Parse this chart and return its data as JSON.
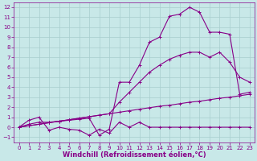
{
  "bg_color": "#c8e8e8",
  "grid_color": "#a8cece",
  "line_color": "#880088",
  "xlim": [
    -0.5,
    23.5
  ],
  "ylim": [
    -1.5,
    12.5
  ],
  "xticks": [
    0,
    1,
    2,
    3,
    4,
    5,
    6,
    7,
    8,
    9,
    10,
    11,
    12,
    13,
    14,
    15,
    16,
    17,
    18,
    19,
    20,
    21,
    22,
    23
  ],
  "yticks": [
    -1,
    0,
    1,
    2,
    3,
    4,
    5,
    6,
    7,
    8,
    9,
    10,
    11,
    12
  ],
  "line_bottom_x": [
    0,
    1,
    2,
    3,
    4,
    5,
    6,
    7,
    8,
    9,
    10,
    11,
    12,
    13,
    14,
    15,
    16,
    17,
    18,
    19,
    20,
    21,
    22,
    23
  ],
  "line_bottom_y": [
    0.0,
    0.15,
    0.3,
    0.45,
    0.6,
    0.75,
    0.9,
    1.05,
    1.2,
    1.35,
    1.5,
    1.65,
    1.8,
    1.95,
    2.1,
    2.2,
    2.35,
    2.5,
    2.6,
    2.75,
    2.9,
    3.0,
    3.15,
    3.3
  ],
  "line_mid_x": [
    0,
    1,
    2,
    3,
    4,
    5,
    6,
    7,
    8,
    9,
    10,
    11,
    12,
    13,
    14,
    15,
    16,
    17,
    18,
    19,
    20,
    21,
    22,
    23
  ],
  "line_mid_y": [
    0.0,
    0.15,
    0.3,
    0.45,
    0.6,
    0.75,
    0.9,
    1.05,
    1.2,
    1.35,
    2.5,
    3.5,
    4.5,
    5.5,
    6.2,
    6.8,
    7.2,
    7.5,
    7.5,
    7.0,
    7.5,
    6.5,
    5.0,
    4.5
  ],
  "line_top_x": [
    0,
    1,
    2,
    3,
    4,
    5,
    6,
    7,
    8,
    9,
    10,
    11,
    12,
    13,
    14,
    15,
    16,
    17,
    18,
    19,
    20,
    21,
    22,
    23
  ],
  "line_top_y": [
    0.0,
    0.3,
    0.5,
    0.5,
    0.6,
    0.7,
    0.8,
    0.9,
    -0.8,
    -0.2,
    4.5,
    4.5,
    6.2,
    8.5,
    9.0,
    11.1,
    11.3,
    12.0,
    11.5,
    9.5,
    9.5,
    9.3,
    3.3,
    3.5
  ],
  "line_dip_x": [
    0,
    1,
    2,
    3,
    4,
    5,
    6,
    7,
    8,
    9,
    10,
    11,
    12,
    13,
    14,
    15,
    16,
    17,
    18,
    19,
    20,
    21,
    22,
    23
  ],
  "line_dip_y": [
    0.0,
    0.7,
    1.0,
    -0.3,
    0.0,
    -0.2,
    -0.3,
    -0.8,
    -0.2,
    -0.6,
    0.5,
    0.0,
    0.5,
    0.0,
    0.0,
    0.0,
    0.0,
    0.0,
    0.0,
    0.0,
    0.0,
    0.0,
    0.0,
    0.0
  ],
  "xlabel": "Windchill (Refroidissement éolien,°C)",
  "tick_fontsize": 5.0,
  "xlabel_fontsize": 6.0
}
